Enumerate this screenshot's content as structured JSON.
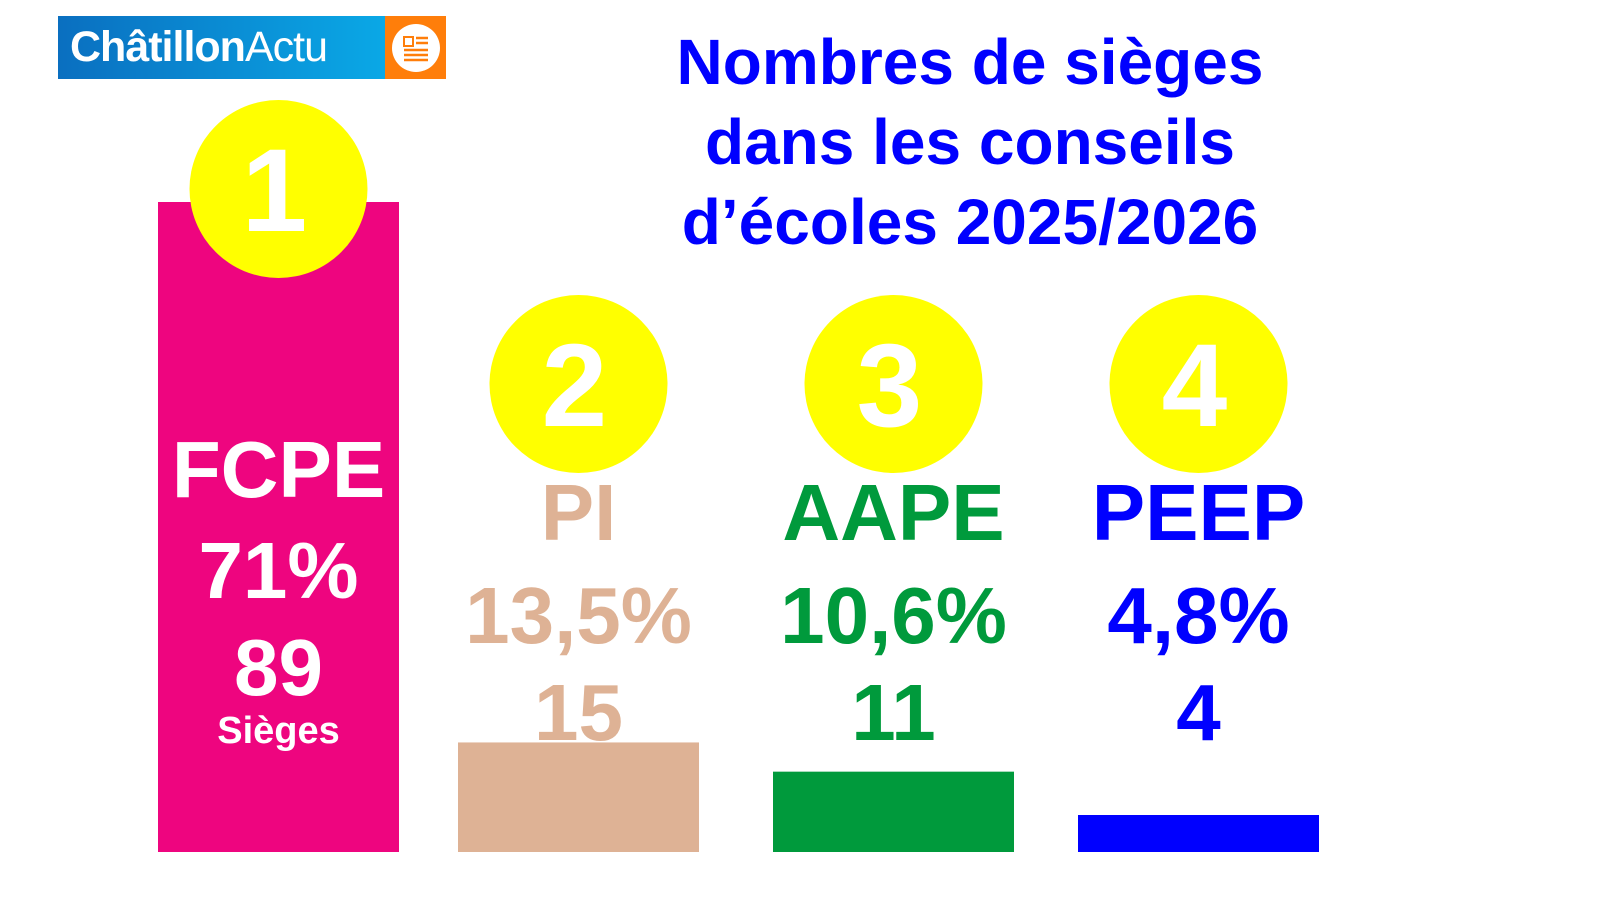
{
  "logo": {
    "part1": "Châtillon",
    "part2": "Actu",
    "icon": "newspaper-icon"
  },
  "chart_data": {
    "type": "bar",
    "title": "Nombres de sièges dans les conseils d’écoles 2025/2026",
    "title_lines": [
      "Nombres de sièges",
      "dans les conseils",
      "d’écoles 2025/2026"
    ],
    "categories": [
      "FCPE",
      "PI",
      "AAPE",
      "PEEP"
    ],
    "ranks": [
      "1",
      "2",
      "3",
      "4"
    ],
    "percent_labels": [
      "71%",
      "13,5%",
      "10,6%",
      "4,8%"
    ],
    "percent": [
      71,
      13.5,
      10.6,
      4.8
    ],
    "values": [
      89,
      15,
      11,
      4
    ],
    "seats_label": "Sièges",
    "colors": [
      "#ee057f",
      "#deb295",
      "#009a3c",
      "#0000ff"
    ],
    "rank_circle_color": "#ffff00",
    "ylabel": "Sièges",
    "ylim": [
      0,
      89
    ],
    "grid": false
  }
}
